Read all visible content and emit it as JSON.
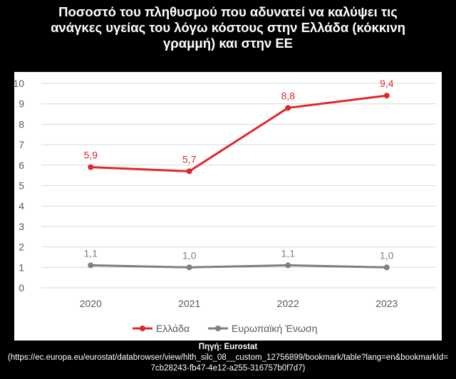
{
  "title_lines": [
    "Ποσοστό του πληθυσμού που αδυνατεί να καλύψει τις",
    "ανάγκες υγείας του λόγω κόστους στην Ελλάδα (κόκκινη",
    "γραμμή) και στην ΕΕ"
  ],
  "source": {
    "label": "Πηγή: Eurostat",
    "url": "(https://ec.europa.eu/eurostat/databrowser/view/hlth_silc_08__custom_12756899/bookmark/table?lang=en&bookmarkId=7cb28243-fb47-4e12-a255-316757b0f7d7)"
  },
  "chart_data": {
    "type": "line",
    "title": "",
    "xlabel": "",
    "ylabel": "",
    "categories": [
      "2020",
      "2021",
      "2022",
      "2023"
    ],
    "ylim": [
      0,
      10
    ],
    "yticks": [
      "0",
      "1",
      "2",
      "3",
      "4",
      "5",
      "6",
      "7",
      "8",
      "9",
      "10"
    ],
    "grid": true,
    "legend_position": "bottom",
    "series": [
      {
        "name": "Ελλάδα",
        "color": "#e0262b",
        "values": [
          5.9,
          5.7,
          8.8,
          9.4
        ],
        "labels": [
          "5,9",
          "5,7",
          "8,8",
          "9,4"
        ]
      },
      {
        "name": "Ευρωπαϊκή Ένωση",
        "color": "#7f7f7f",
        "values": [
          1.1,
          1.0,
          1.1,
          1.0
        ],
        "labels": [
          "1,1",
          "1,0",
          "1,1",
          "1,0"
        ]
      }
    ]
  }
}
